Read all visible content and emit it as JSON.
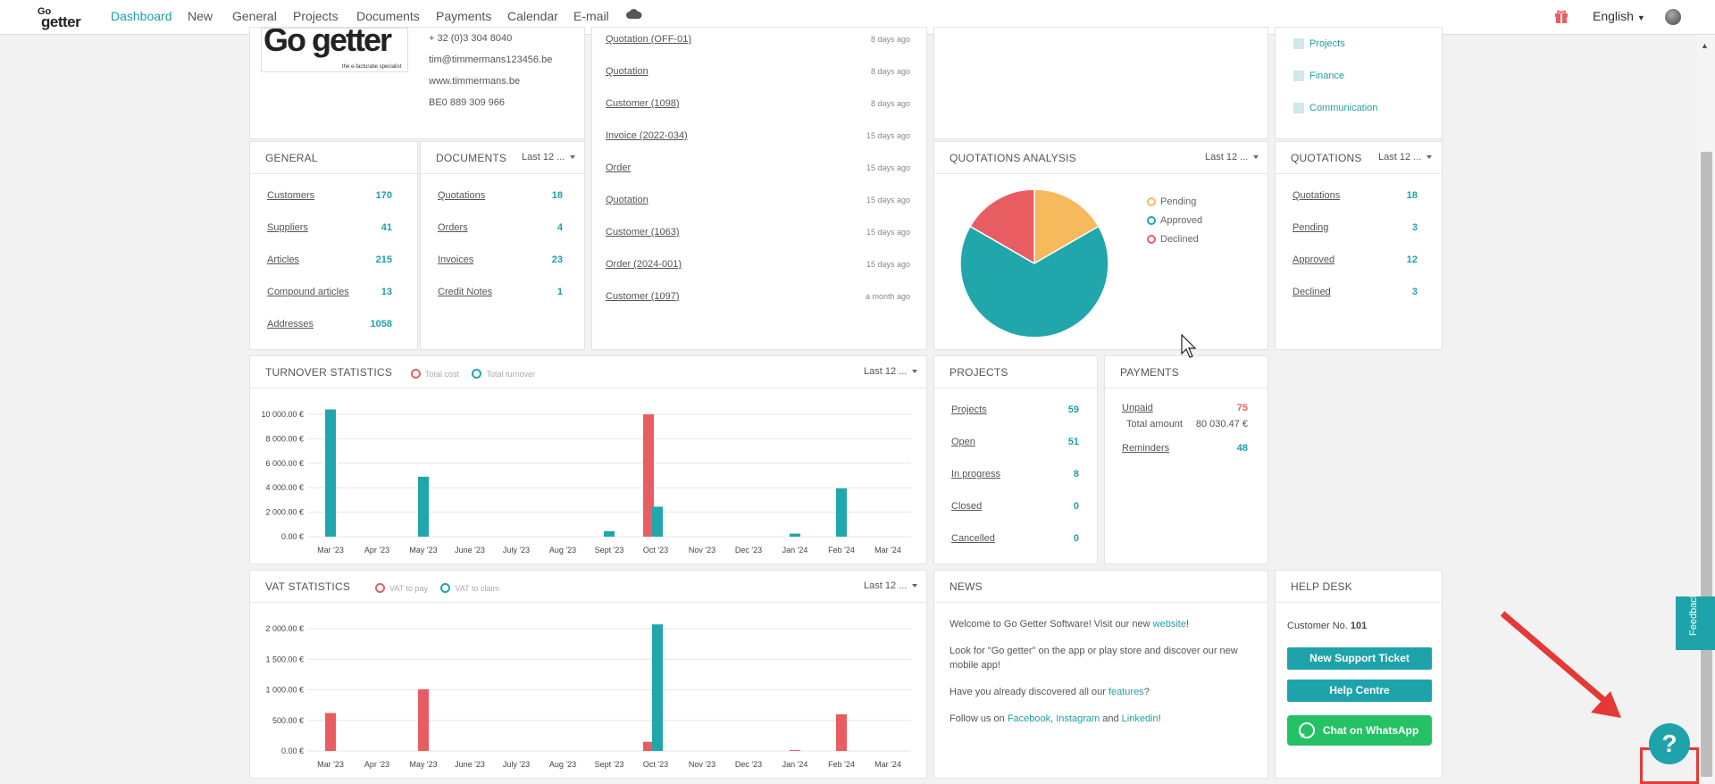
{
  "nav": {
    "items": [
      "Dashboard",
      "New",
      "General",
      "Projects",
      "Documents",
      "Payments",
      "Calendar",
      "E-mail"
    ],
    "language": "English"
  },
  "company": {
    "logo_text": "Go getter",
    "logo_tagline": "the e-facturatie specialist",
    "phone": "+ 32 (0)3 304 8040",
    "email": "tim@timmermans123456.be",
    "website": "www.timmermans.be",
    "vat": "BE0 889 309 966"
  },
  "activity": [
    {
      "label": "Quotation (OFF-01)",
      "date": "8 days ago"
    },
    {
      "label": "Quotation",
      "date": "8 days ago"
    },
    {
      "label": "Customer (1098)",
      "date": "8 days ago"
    },
    {
      "label": "Invoice (2022-034)",
      "date": "15 days ago"
    },
    {
      "label": "Order",
      "date": "15 days ago"
    },
    {
      "label": "Quotation",
      "date": "15 days ago"
    },
    {
      "label": "Customer (1063)",
      "date": "15 days ago"
    },
    {
      "label": "Order (2024-001)",
      "date": "15 days ago"
    },
    {
      "label": "Customer (1097)",
      "date": "a month ago"
    }
  ],
  "shortcuts": [
    "Projects",
    "Finance",
    "Communication"
  ],
  "general": {
    "title": "GENERAL",
    "rows": [
      {
        "label": "Customers",
        "value": "170"
      },
      {
        "label": "Suppliers",
        "value": "41"
      },
      {
        "label": "Articles",
        "value": "215"
      },
      {
        "label": "Compound articles",
        "value": "13"
      },
      {
        "label": "Addresses",
        "value": "1058"
      }
    ]
  },
  "documents": {
    "title": "DOCUMENTS",
    "period": "Last 12 ...",
    "rows": [
      {
        "label": "Quotations",
        "value": "18"
      },
      {
        "label": "Orders",
        "value": "4"
      },
      {
        "label": "Invoices",
        "value": "23"
      },
      {
        "label": "Credit Notes",
        "value": "1"
      }
    ]
  },
  "quotations_analysis": {
    "title": "QUOTATIONS ANALYSIS",
    "period": "Last 12 ...",
    "legend": [
      "Pending",
      "Approved",
      "Declined"
    ]
  },
  "quotations": {
    "title": "QUOTATIONS",
    "period": "Last 12 ...",
    "rows": [
      {
        "label": "Quotations",
        "value": "18"
      },
      {
        "label": "Pending",
        "value": "3"
      },
      {
        "label": "Approved",
        "value": "12"
      },
      {
        "label": "Declined",
        "value": "3"
      }
    ]
  },
  "turnover": {
    "title": "TURNOVER STATISTICS",
    "period": "Last 12 ...",
    "legend": [
      "Total cost",
      "Total turnover"
    ]
  },
  "vat": {
    "title": "VAT STATISTICS",
    "period": "Last 12 ...",
    "legend": [
      "VAT to pay",
      "VAT to claim"
    ]
  },
  "projects": {
    "title": "PROJECTS",
    "rows": [
      {
        "label": "Projects",
        "value": "59"
      },
      {
        "label": "Open",
        "value": "51"
      },
      {
        "label": "In progress",
        "value": "8"
      },
      {
        "label": "Closed",
        "value": "0"
      },
      {
        "label": "Cancelled",
        "value": "0"
      }
    ]
  },
  "payments": {
    "title": "PAYMENTS",
    "unpaid_label": "Unpaid",
    "unpaid_value": "75",
    "total_label": "Total amount",
    "total_value": "80 030.47 €",
    "reminders_label": "Reminders",
    "reminders_value": "48"
  },
  "news": {
    "title": "NEWS",
    "p1_pre": "Welcome to Go Getter Software! Visit our new ",
    "p1_link": "website",
    "p1_post": "!",
    "p2": "Look for \"Go getter\" on the app or play store and discover our new mobile app!",
    "p3_pre": "Have you already discovered all our ",
    "p3_link": "features",
    "p3_post": "?",
    "p4_pre": "Follow us on ",
    "p4_fb": "Facebook",
    "p4_sep": ", ",
    "p4_ig": "Instagram",
    "p4_and": " and ",
    "p4_li": "Linkedin",
    "p4_post": "!"
  },
  "helpdesk": {
    "title": "HELP DESK",
    "customer_label": "Customer No.",
    "customer_no": "101",
    "ticket": "New Support Ticket",
    "centre": "Help Centre",
    "whatsapp": "Chat on WhatsApp"
  },
  "feedback": "Feedback",
  "help_icon": "?",
  "colors": {
    "accent": "#1fa3aa",
    "cost": "#e85d62",
    "pending": "#f6b95c",
    "whatsapp": "#25c265"
  },
  "chart_data": [
    {
      "type": "pie",
      "title": "QUOTATIONS ANALYSIS",
      "categories": [
        "Pending",
        "Approved",
        "Declined"
      ],
      "values": [
        3,
        12,
        3
      ],
      "colors": [
        "#f6b95c",
        "#20a6ab",
        "#e85d62"
      ]
    },
    {
      "type": "bar",
      "title": "TURNOVER STATISTICS",
      "categories": [
        "Mar '23",
        "Apr '23",
        "May '23",
        "June '23",
        "July '23",
        "Aug '23",
        "Sept '23",
        "Oct '23",
        "Nov '23",
        "Dec '23",
        "Jan '24",
        "Feb '24",
        "Mar '24"
      ],
      "yticks": [
        "0.00 €",
        "2 000.00 €",
        "4 000.00 €",
        "6 000.00 €",
        "8 000.00 €",
        "10 000.00 €"
      ],
      "ylim": [
        0,
        10000
      ],
      "series": [
        {
          "name": "Total cost",
          "color": "#e85d62",
          "values": [
            0,
            0,
            0,
            0,
            0,
            0,
            0,
            10000,
            0,
            0,
            0,
            0,
            0
          ]
        },
        {
          "name": "Total turnover",
          "color": "#20a6ab",
          "values": [
            10400,
            0,
            4900,
            0,
            0,
            0,
            450,
            2450,
            0,
            0,
            250,
            3950,
            0
          ]
        }
      ]
    },
    {
      "type": "bar",
      "title": "VAT STATISTICS",
      "categories": [
        "Mar '23",
        "Apr '23",
        "May '23",
        "June '23",
        "July '23",
        "Aug '23",
        "Sept '23",
        "Oct '23",
        "Nov '23",
        "Dec '23",
        "Jan '24",
        "Feb '24",
        "Mar '24"
      ],
      "yticks": [
        "0.00 €",
        "500.00 €",
        "1 000.00 €",
        "1 500.00 €",
        "2 000.00 €"
      ],
      "ylim": [
        0,
        2000
      ],
      "series": [
        {
          "name": "VAT to pay",
          "color": "#e85d62",
          "values": [
            620,
            0,
            1010,
            0,
            0,
            0,
            0,
            150,
            0,
            0,
            15,
            600,
            0
          ]
        },
        {
          "name": "VAT to claim",
          "color": "#20a6ab",
          "values": [
            0,
            0,
            0,
            0,
            0,
            0,
            0,
            2070,
            0,
            0,
            0,
            0,
            0
          ]
        }
      ]
    }
  ]
}
